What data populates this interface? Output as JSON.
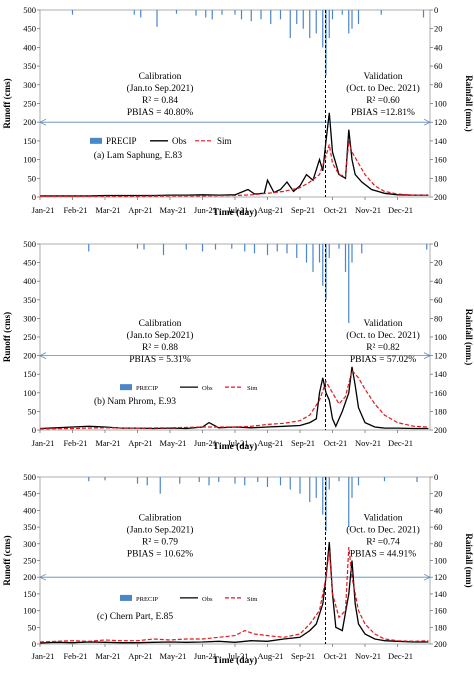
{
  "chart_data": [
    {
      "type": "line",
      "panel_label": "(a) Lam Saphung, E.83",
      "ylabel_left": "Runoff (cms)",
      "ylabel_right": "Rainfall (mm.)",
      "xlabel": "Time (day)",
      "ylim_left": [
        0,
        500
      ],
      "yticks_left": [
        0,
        50,
        100,
        150,
        200,
        250,
        300,
        350,
        400,
        450,
        500
      ],
      "ylim_right": [
        0,
        200
      ],
      "yticks_right": [
        0,
        20,
        40,
        60,
        80,
        100,
        120,
        140,
        160,
        180,
        200
      ],
      "right_axis_inverted": true,
      "categories": [
        "Jan-21",
        "Feb-21",
        "Mar-21",
        "Apr-21",
        "May-21",
        "Jun-21",
        "Jul-21",
        "Aug-21",
        "Sep-21",
        "Oct-21",
        "Nov-21",
        "Dec-21"
      ],
      "split_line": {
        "x": "Oct-21"
      },
      "legend": [
        "PRECIP",
        "Obs",
        "Sim"
      ],
      "calibration": {
        "title": "Calibration",
        "period": "(Jan.to Sep.2021)",
        "r2": "R² = 0.84",
        "pbias": "PBIAS = 40.80%"
      },
      "validation": {
        "title": "Validation",
        "period": "(Oct. to Dec. 2021)",
        "r2": "R² =0.60",
        "pbias": "PBIAS =12.81%"
      },
      "series": [
        {
          "name": "Obs",
          "axis": "left",
          "x": [
            0,
            0.5,
            1.0,
            1.5,
            2.0,
            2.5,
            3.0,
            3.5,
            4.0,
            4.5,
            5.0,
            5.5,
            6.0,
            6.4,
            6.6,
            6.9,
            7.0,
            7.2,
            7.4,
            7.6,
            7.8,
            8.0,
            8.2,
            8.4,
            8.6,
            8.7,
            8.8,
            8.9,
            9.0,
            9.1,
            9.2,
            9.4,
            9.5,
            9.6,
            9.7,
            9.9,
            10.2,
            10.6,
            11.0,
            11.4,
            11.95
          ],
          "values": [
            3,
            3,
            3,
            3,
            4,
            4,
            4,
            4,
            5,
            5,
            6,
            5,
            6,
            20,
            8,
            10,
            45,
            12,
            20,
            40,
            15,
            30,
            60,
            45,
            100,
            70,
            150,
            225,
            120,
            90,
            60,
            50,
            180,
            100,
            60,
            40,
            20,
            10,
            6,
            5,
            5
          ]
        },
        {
          "name": "Sim",
          "axis": "left",
          "x": [
            0,
            1,
            2,
            3,
            4,
            5,
            6,
            6.5,
            7,
            7.5,
            8,
            8.3,
            8.6,
            8.8,
            8.9,
            9.0,
            9.2,
            9.4,
            9.5,
            9.6,
            9.8,
            10.0,
            10.3,
            10.6,
            11.0,
            11.5,
            11.95
          ],
          "values": [
            2,
            2,
            2,
            2,
            3,
            3,
            4,
            6,
            10,
            15,
            25,
            40,
            60,
            110,
            140,
            90,
            60,
            55,
            150,
            120,
            90,
            60,
            30,
            15,
            8,
            5,
            5
          ]
        },
        {
          "name": "PRECIP",
          "axis": "right",
          "x": [
            1.0,
            2.9,
            3.1,
            3.6,
            4.2,
            4.8,
            5.1,
            5.3,
            5.6,
            6.0,
            6.2,
            6.5,
            6.8,
            7.1,
            7.4,
            7.7,
            7.9,
            8.1,
            8.3,
            8.5,
            8.7,
            8.8,
            8.9,
            9.0,
            9.3,
            9.5,
            9.6,
            9.8,
            10.5,
            11.8
          ],
          "values": [
            5,
            5,
            8,
            18,
            4,
            6,
            8,
            10,
            5,
            5,
            10,
            12,
            10,
            15,
            10,
            30,
            15,
            20,
            30,
            25,
            40,
            70,
            30,
            10,
            5,
            25,
            20,
            15,
            5,
            8
          ]
        }
      ]
    },
    {
      "type": "line",
      "panel_label": "(b) Nam Phrom, E.93",
      "ylabel_left": "Runoff (cms)",
      "ylabel_right": "Rainfall (mm.)",
      "xlabel": "Time (day)",
      "ylim_left": [
        0,
        500
      ],
      "yticks_left": [
        0,
        50,
        100,
        150,
        200,
        250,
        300,
        350,
        400,
        450,
        500
      ],
      "ylim_right": [
        0,
        200
      ],
      "yticks_right": [
        0,
        20,
        40,
        60,
        80,
        100,
        120,
        140,
        160,
        180,
        200
      ],
      "right_axis_inverted": true,
      "categories": [
        "Jan-21",
        "Feb-21",
        "Mar-21",
        "Apr-21",
        "May-21",
        "Jun-21",
        "Jul-21",
        "Aug-21",
        "Sep-21",
        "Oct-21",
        "Nov-21",
        "Dec-21"
      ],
      "split_line": {
        "x": "Oct-21"
      },
      "legend": [
        "PRECIP",
        "Obs",
        "Sim"
      ],
      "calibration": {
        "title": "Calibration",
        "period": "(Jan.to Sep.2021)",
        "r2": "R² = 0.88",
        "pbias": "PBIAS = 5.31%"
      },
      "validation": {
        "title": "Validation",
        "period": "(Oct. to Dec. 2021)",
        "r2": "R² =0.82",
        "pbias": "PBIAS = 57.02%"
      },
      "series": [
        {
          "name": "Obs",
          "axis": "left",
          "x": [
            0,
            0.5,
            1.0,
            1.5,
            2.0,
            2.5,
            3.0,
            3.5,
            4.0,
            4.5,
            5.0,
            5.2,
            5.5,
            6.0,
            6.5,
            7.0,
            7.5,
            8.0,
            8.3,
            8.5,
            8.6,
            8.7,
            8.8,
            8.9,
            9.0,
            9.1,
            9.3,
            9.5,
            9.6,
            9.7,
            9.8,
            10.0,
            10.3,
            10.6,
            11.0,
            11.5,
            11.95
          ],
          "values": [
            4,
            6,
            8,
            10,
            8,
            5,
            5,
            4,
            5,
            4,
            8,
            20,
            6,
            8,
            6,
            8,
            10,
            12,
            20,
            30,
            100,
            140,
            100,
            80,
            30,
            10,
            50,
            100,
            170,
            120,
            60,
            20,
            8,
            5,
            5,
            4,
            4
          ]
        },
        {
          "name": "Sim",
          "axis": "left",
          "x": [
            0,
            1,
            2,
            3,
            4,
            5,
            6,
            6.5,
            7,
            7.5,
            8,
            8.3,
            8.6,
            8.8,
            9.0,
            9.2,
            9.4,
            9.6,
            9.8,
            10.0,
            10.3,
            10.6,
            11.0,
            11.5,
            11.95
          ],
          "values": [
            3,
            4,
            6,
            5,
            6,
            8,
            8,
            10,
            15,
            18,
            25,
            40,
            80,
            130,
            100,
            70,
            90,
            160,
            140,
            110,
            70,
            40,
            20,
            10,
            8
          ]
        },
        {
          "name": "PRECIP",
          "axis": "right",
          "x": [
            1.5,
            3.0,
            3.2,
            3.8,
            4.5,
            5.0,
            5.4,
            5.9,
            6.3,
            6.6,
            7.0,
            7.3,
            7.6,
            7.9,
            8.2,
            8.4,
            8.6,
            8.7,
            8.8,
            8.9,
            9.2,
            9.4,
            9.5,
            9.6,
            9.9,
            11.9
          ],
          "values": [
            8,
            5,
            6,
            12,
            6,
            8,
            6,
            5,
            8,
            10,
            12,
            8,
            10,
            15,
            20,
            30,
            20,
            45,
            60,
            15,
            5,
            30,
            85,
            20,
            10,
            6
          ]
        }
      ]
    },
    {
      "type": "line",
      "panel_label": "(c) Chern Part, E.85",
      "ylabel_left": "Runoff (cms)",
      "ylabel_right": "Rainfall (mm)",
      "xlabel": "Time (day)",
      "ylim_left": [
        0,
        500
      ],
      "yticks_left": [
        0,
        50,
        100,
        150,
        200,
        250,
        300,
        350,
        400,
        450,
        500
      ],
      "ylim_right": [
        0,
        200
      ],
      "yticks_right": [
        0,
        20,
        40,
        60,
        80,
        100,
        120,
        140,
        160,
        180,
        200
      ],
      "right_axis_inverted": true,
      "categories": [
        "Jan-21",
        "Feb-21",
        "Mar-21",
        "Apr-21",
        "May-21",
        "Jun-21",
        "Jul-21",
        "Aug-21",
        "Sep-21",
        "Oct-21",
        "Nov-21",
        "Dec-21"
      ],
      "split_line": {
        "x": "Oct-21"
      },
      "legend": [
        "PRECIP",
        "Obs",
        "Sim"
      ],
      "calibration": {
        "title": "Calibration",
        "period": "(Jan.to Sep.2021)",
        "r2": "R² = 0.79",
        "pbias": "PBIAS = 10.62%"
      },
      "validation": {
        "title": "Validation",
        "period": "(Oct. to Dec. 2021)",
        "r2": "R² =0.74",
        "pbias": "PBIAS = 44.91%"
      },
      "series": [
        {
          "name": "Obs",
          "axis": "left",
          "x": [
            0,
            0.5,
            1.0,
            1.5,
            2.0,
            2.5,
            3.0,
            3.5,
            4.0,
            4.5,
            5.0,
            5.5,
            6.0,
            6.5,
            7.0,
            7.5,
            8.0,
            8.3,
            8.5,
            8.7,
            8.8,
            8.9,
            9.0,
            9.1,
            9.3,
            9.5,
            9.6,
            9.7,
            9.8,
            10.0,
            10.3,
            10.6,
            11.0,
            11.5,
            11.95
          ],
          "values": [
            3,
            5,
            4,
            6,
            5,
            4,
            4,
            5,
            6,
            5,
            6,
            8,
            5,
            10,
            8,
            15,
            20,
            40,
            60,
            120,
            200,
            305,
            150,
            50,
            40,
            150,
            250,
            120,
            60,
            30,
            15,
            10,
            8,
            6,
            6
          ]
        },
        {
          "name": "Sim",
          "axis": "left",
          "x": [
            0,
            0.5,
            1.0,
            1.5,
            2.0,
            2.5,
            3.0,
            3.5,
            4.0,
            4.5,
            5.0,
            5.5,
            6.0,
            6.3,
            6.6,
            7.0,
            7.5,
            8.0,
            8.3,
            8.6,
            8.8,
            8.9,
            9.0,
            9.2,
            9.4,
            9.5,
            9.6,
            9.8,
            10.0,
            10.3,
            10.6,
            11.0,
            11.5,
            11.95
          ],
          "values": [
            6,
            8,
            10,
            8,
            12,
            10,
            10,
            15,
            12,
            15,
            15,
            20,
            25,
            40,
            30,
            25,
            20,
            30,
            60,
            100,
            200,
            280,
            150,
            80,
            100,
            290,
            200,
            100,
            60,
            30,
            15,
            10,
            8,
            10
          ]
        },
        {
          "name": "PRECIP",
          "axis": "right",
          "x": [
            1.5,
            2.0,
            3.0,
            3.3,
            3.7,
            4.3,
            4.9,
            5.2,
            5.5,
            6.0,
            6.3,
            6.7,
            7.0,
            7.4,
            7.7,
            8.0,
            8.3,
            8.5,
            8.7,
            8.8,
            8.9,
            9.2,
            9.5,
            9.6,
            9.8,
            10.6,
            11.6
          ],
          "values": [
            5,
            4,
            8,
            10,
            20,
            8,
            6,
            10,
            6,
            8,
            10,
            6,
            12,
            10,
            15,
            20,
            30,
            25,
            45,
            65,
            15,
            5,
            60,
            25,
            10,
            5,
            6
          ]
        }
      ]
    }
  ]
}
